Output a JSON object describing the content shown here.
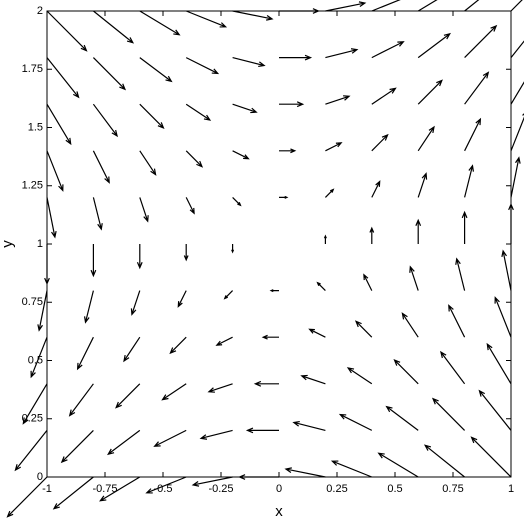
{
  "chart_data": {
    "type": "quiver",
    "xlabel": "x",
    "ylabel": "y",
    "color": "#000000",
    "xlim": [
      -1,
      1
    ],
    "ylim": [
      0,
      2
    ],
    "xticks": [
      -1,
      -0.75,
      -0.5,
      -0.25,
      0,
      0.25,
      0.5,
      0.75,
      1
    ],
    "yticks": [
      0,
      0.25,
      0.5,
      0.75,
      1,
      1.25,
      1.5,
      1.75,
      2
    ],
    "x": [
      -1,
      -0.8,
      -0.6,
      -0.4,
      -0.2,
      0,
      0.2,
      0.4,
      0.6,
      0.8,
      1,
      -1,
      -0.8,
      -0.6,
      -0.4,
      -0.2,
      0,
      0.2,
      0.4,
      0.6,
      0.8,
      1,
      -1,
      -0.8,
      -0.6,
      -0.4,
      -0.2,
      0,
      0.2,
      0.4,
      0.6,
      0.8,
      1,
      -1,
      -0.8,
      -0.6,
      -0.4,
      -0.2,
      0,
      0.2,
      0.4,
      0.6,
      0.8,
      1,
      -1,
      -0.8,
      -0.6,
      -0.4,
      -0.2,
      0,
      0.2,
      0.4,
      0.6,
      0.8,
      1,
      -1,
      -0.8,
      -0.6,
      -0.4,
      -0.2,
      0,
      0.2,
      0.4,
      0.6,
      0.8,
      1,
      -1,
      -0.8,
      -0.6,
      -0.4,
      -0.2,
      0,
      0.2,
      0.4,
      0.6,
      0.8,
      1,
      -1,
      -0.8,
      -0.6,
      -0.4,
      -0.2,
      0,
      0.2,
      0.4,
      0.6,
      0.8,
      1,
      -1,
      -0.8,
      -0.6,
      -0.4,
      -0.2,
      0,
      0.2,
      0.4,
      0.6,
      0.8,
      1,
      -1,
      -0.8,
      -0.6,
      -0.4,
      -0.2,
      0,
      0.2,
      0.4,
      0.6,
      0.8,
      1,
      -1,
      -0.8,
      -0.6,
      -0.4,
      -0.2,
      0,
      0.2,
      0.4,
      0.6,
      0.8,
      1
    ],
    "y": [
      0,
      0,
      0,
      0,
      0,
      0,
      0,
      0,
      0,
      0,
      0,
      0.2,
      0.2,
      0.2,
      0.2,
      0.2,
      0.2,
      0.2,
      0.2,
      0.2,
      0.2,
      0.2,
      0.4,
      0.4,
      0.4,
      0.4,
      0.4,
      0.4,
      0.4,
      0.4,
      0.4,
      0.4,
      0.4,
      0.6,
      0.6,
      0.6,
      0.6,
      0.6,
      0.6,
      0.6,
      0.6,
      0.6,
      0.6,
      0.6,
      0.8,
      0.8,
      0.8,
      0.8,
      0.8,
      0.8,
      0.8,
      0.8,
      0.8,
      0.8,
      0.8,
      1,
      1,
      1,
      1,
      1,
      1,
      1,
      1,
      1,
      1,
      1,
      1.2,
      1.2,
      1.2,
      1.2,
      1.2,
      1.2,
      1.2,
      1.2,
      1.2,
      1.2,
      1.2,
      1.4,
      1.4,
      1.4,
      1.4,
      1.4,
      1.4,
      1.4,
      1.4,
      1.4,
      1.4,
      1.4,
      1.6,
      1.6,
      1.6,
      1.6,
      1.6,
      1.6,
      1.6,
      1.6,
      1.6,
      1.6,
      1.6,
      1.8,
      1.8,
      1.8,
      1.8,
      1.8,
      1.8,
      1.8,
      1.8,
      1.8,
      1.8,
      1.8,
      2,
      2,
      2,
      2,
      2,
      2,
      2,
      2,
      2,
      2,
      2
    ],
    "u": [
      -1,
      -1,
      -1,
      -1,
      -1,
      -1,
      -1,
      -1,
      -1,
      -1,
      -1,
      -0.8,
      -0.8,
      -0.8,
      -0.8,
      -0.8,
      -0.8,
      -0.8,
      -0.8,
      -0.8,
      -0.8,
      -0.8,
      -0.6,
      -0.6,
      -0.6,
      -0.6,
      -0.6,
      -0.6,
      -0.6,
      -0.6,
      -0.6,
      -0.6,
      -0.6,
      -0.4,
      -0.4,
      -0.4,
      -0.4,
      -0.4,
      -0.4,
      -0.4,
      -0.4,
      -0.4,
      -0.4,
      -0.4,
      -0.2,
      -0.2,
      -0.2,
      -0.2,
      -0.2,
      -0.2,
      -0.2,
      -0.2,
      -0.2,
      -0.2,
      -0.2,
      0,
      0,
      0,
      0,
      0,
      0,
      0,
      0,
      0,
      0,
      0,
      0.2,
      0.2,
      0.2,
      0.2,
      0.2,
      0.2,
      0.2,
      0.2,
      0.2,
      0.2,
      0.2,
      0.4,
      0.4,
      0.4,
      0.4,
      0.4,
      0.4,
      0.4,
      0.4,
      0.4,
      0.4,
      0.4,
      0.6,
      0.6,
      0.6,
      0.6,
      0.6,
      0.6,
      0.6,
      0.6,
      0.6,
      0.6,
      0.6,
      0.8,
      0.8,
      0.8,
      0.8,
      0.8,
      0.8,
      0.8,
      0.8,
      0.8,
      0.8,
      0.8,
      1,
      1,
      1,
      1,
      1,
      1,
      1,
      1,
      1,
      1,
      1
    ],
    "v": [
      -1,
      -0.8,
      -0.6,
      -0.4,
      -0.2,
      0,
      0.2,
      0.4,
      0.6,
      0.8,
      1,
      -1,
      -0.8,
      -0.6,
      -0.4,
      -0.2,
      0,
      0.2,
      0.4,
      0.6,
      0.8,
      1,
      -1,
      -0.8,
      -0.6,
      -0.4,
      -0.2,
      0,
      0.2,
      0.4,
      0.6,
      0.8,
      1,
      -1,
      -0.8,
      -0.6,
      -0.4,
      -0.2,
      0,
      0.2,
      0.4,
      0.6,
      0.8,
      1,
      -1,
      -0.8,
      -0.6,
      -0.4,
      -0.2,
      0,
      0.2,
      0.4,
      0.6,
      0.8,
      1,
      -1,
      -0.8,
      -0.6,
      -0.4,
      -0.2,
      0,
      0.2,
      0.4,
      0.6,
      0.8,
      1,
      -1,
      -0.8,
      -0.6,
      -0.4,
      -0.2,
      0,
      0.2,
      0.4,
      0.6,
      0.8,
      1,
      -1,
      -0.8,
      -0.6,
      -0.4,
      -0.2,
      0,
      0.2,
      0.4,
      0.6,
      0.8,
      1,
      -1,
      -0.8,
      -0.6,
      -0.4,
      -0.2,
      0,
      0.2,
      0.4,
      0.6,
      0.8,
      1,
      -1,
      -0.8,
      -0.6,
      -0.4,
      -0.2,
      0,
      0.2,
      0.4,
      0.6,
      0.8,
      1,
      -1,
      -0.8,
      -0.6,
      -0.4,
      -0.2,
      0,
      0.2,
      0.4,
      0.6,
      0.8,
      1
    ]
  }
}
